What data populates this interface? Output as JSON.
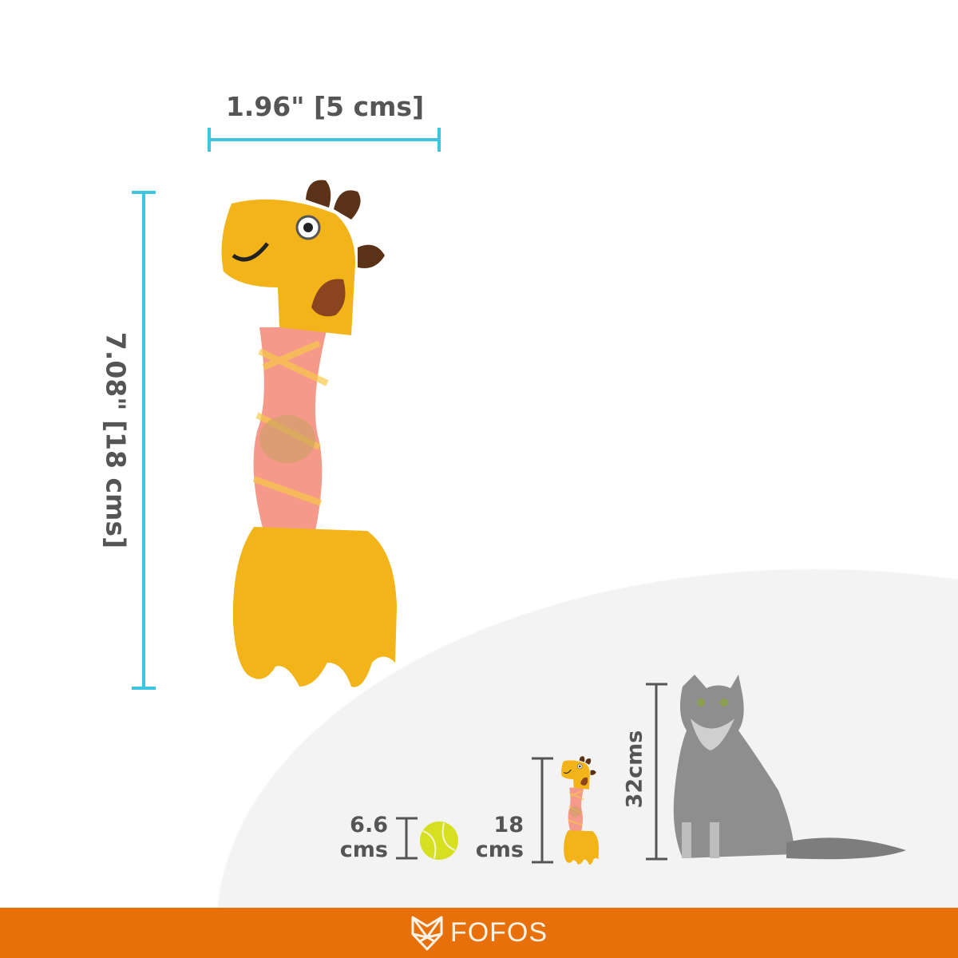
{
  "product": {
    "width_label": "1.96\" [5 cms]",
    "height_label": "7.08\" [18 cms]"
  },
  "comparison": {
    "ball_value": "6.6",
    "ball_unit": "cms",
    "toy_value": "18",
    "toy_unit": "cms",
    "cat_label": "32cms"
  },
  "brand": {
    "name": "FOFOS"
  },
  "colors": {
    "measure_line": "#3cc4e0",
    "footer": "#e8700a",
    "toy_yellow": "#f2b418",
    "toy_neck": "#f59a8a",
    "comparison_line": "#555555"
  }
}
